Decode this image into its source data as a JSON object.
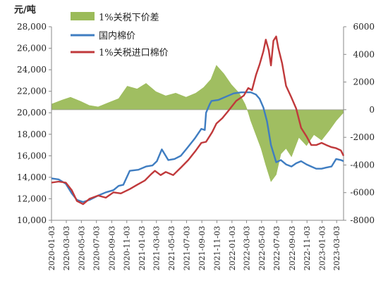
{
  "chart_data": {
    "type": "line",
    "unit_label": "元/吨",
    "left_axis": {
      "ylim": [
        10000,
        28000
      ],
      "ticks": [
        "10,000",
        "12,000",
        "14,000",
        "16,000",
        "18,000",
        "20,000",
        "22,000",
        "24,000",
        "26,000",
        "28,000"
      ],
      "tick_values": [
        10000,
        12000,
        14000,
        16000,
        18000,
        20000,
        22000,
        24000,
        26000,
        28000
      ]
    },
    "right_axis": {
      "ylim": [
        -8000,
        6000
      ],
      "ticks": [
        "-8000",
        "-6000",
        "-4000",
        "-2000",
        "0",
        "2000",
        "4000",
        "6000"
      ],
      "tick_values": [
        -8000,
        -6000,
        -4000,
        -2000,
        0,
        2000,
        4000,
        6000
      ]
    },
    "x_ticks": [
      "2020-01-03",
      "2020-03-03",
      "2020-05-03",
      "2020-07-03",
      "2020-09-03",
      "2020-11-03",
      "2021-01-03",
      "2021-03-03",
      "2021-05-03",
      "2021-07-03",
      "2021-09-03",
      "2021-11-03",
      "2022-01-03",
      "2022-03-03",
      "2022-05-03",
      "2022-07-03",
      "2022-09-03",
      "2022-11-03",
      "2023-01-03",
      "2023-03-03"
    ],
    "x_range": [
      "2020-01-03",
      "2023-03-31"
    ],
    "grid": false,
    "legend_position": "top-left",
    "series": [
      {
        "name": "1%关税下价差",
        "kind": "area",
        "axis": "right",
        "color": "#9bbb59",
        "dates": [
          "2020-01-03",
          "2020-02-15",
          "2020-03-20",
          "2020-04-30",
          "2020-06-05",
          "2020-07-10",
          "2020-08-20",
          "2020-10-01",
          "2020-11-05",
          "2020-12-15",
          "2021-01-20",
          "2021-03-01",
          "2021-04-10",
          "2021-05-20",
          "2021-07-01",
          "2021-08-10",
          "2021-09-10",
          "2021-10-10",
          "2021-11-01",
          "2021-12-01",
          "2022-01-01",
          "2022-02-01",
          "2022-02-25",
          "2022-03-10",
          "2022-03-20",
          "2022-04-10",
          "2022-05-01",
          "2022-05-20",
          "2022-06-10",
          "2022-07-01",
          "2022-07-20",
          "2022-08-10",
          "2022-09-01",
          "2022-10-01",
          "2022-11-01",
          "2022-12-01",
          "2023-01-01",
          "2023-02-01",
          "2023-03-01",
          "2023-03-31"
        ],
        "values": [
          400,
          700,
          900,
          600,
          300,
          200,
          500,
          800,
          1700,
          1500,
          1900,
          1300,
          1000,
          1200,
          900,
          1200,
          1600,
          2200,
          3200,
          2600,
          1800,
          1200,
          400,
          -200,
          -800,
          -1800,
          -2800,
          -4000,
          -5200,
          -4700,
          -3200,
          -2800,
          -3400,
          -2000,
          -2600,
          -1800,
          -2200,
          -1500,
          -800,
          -200
        ]
      },
      {
        "name": "国内棉价",
        "kind": "line",
        "axis": "left",
        "color": "#3f7dc1",
        "dates": [
          "2020-01-03",
          "2020-02-01",
          "2020-03-01",
          "2020-03-25",
          "2020-04-15",
          "2020-05-10",
          "2020-06-05",
          "2020-07-10",
          "2020-08-10",
          "2020-09-10",
          "2020-10-01",
          "2020-10-20",
          "2020-11-15",
          "2020-12-20",
          "2021-01-20",
          "2021-02-15",
          "2021-03-05",
          "2021-03-25",
          "2021-04-20",
          "2021-05-15",
          "2021-06-10",
          "2021-07-05",
          "2021-08-05",
          "2021-09-01",
          "2021-09-15",
          "2021-09-20",
          "2021-10-05",
          "2021-10-12",
          "2021-11-10",
          "2021-12-10",
          "2022-01-10",
          "2022-02-10",
          "2022-03-01",
          "2022-03-20",
          "2022-04-10",
          "2022-04-25",
          "2022-05-10",
          "2022-05-25",
          "2022-06-10",
          "2022-07-01",
          "2022-07-20",
          "2022-08-10",
          "2022-09-01",
          "2022-09-20",
          "2022-10-10",
          "2022-11-01",
          "2022-11-20",
          "2022-12-10",
          "2023-01-01",
          "2023-01-20",
          "2023-02-10",
          "2023-03-01",
          "2023-03-20",
          "2023-03-31"
        ],
        "values": [
          13900,
          13800,
          13400,
          12500,
          11900,
          11700,
          11900,
          12300,
          12600,
          12800,
          13200,
          13300,
          14600,
          14700,
          15000,
          15100,
          15500,
          16600,
          15600,
          15700,
          16000,
          16700,
          17600,
          18500,
          18400,
          20000,
          20800,
          21100,
          21200,
          21500,
          21800,
          21900,
          21900,
          21900,
          21700,
          21300,
          20500,
          19200,
          17000,
          15400,
          15600,
          15200,
          15000,
          15300,
          15500,
          15200,
          15000,
          14800,
          14800,
          14900,
          15000,
          15700,
          15600,
          15500
        ]
      },
      {
        "name": "1%关税进口棉价",
        "kind": "line",
        "axis": "left",
        "color": "#c0393b",
        "dates": [
          "2020-01-03",
          "2020-02-01",
          "2020-03-01",
          "2020-03-25",
          "2020-04-15",
          "2020-05-10",
          "2020-06-05",
          "2020-07-10",
          "2020-08-10",
          "2020-09-10",
          "2020-10-10",
          "2020-11-15",
          "2020-12-15",
          "2021-01-15",
          "2021-02-10",
          "2021-02-25",
          "2021-03-20",
          "2021-04-10",
          "2021-05-10",
          "2021-06-10",
          "2021-07-10",
          "2021-08-10",
          "2021-09-01",
          "2021-09-20",
          "2021-10-15",
          "2021-11-01",
          "2021-11-25",
          "2021-12-20",
          "2022-01-20",
          "2022-02-20",
          "2022-03-10",
          "2022-03-25",
          "2022-04-10",
          "2022-04-25",
          "2022-05-10",
          "2022-05-20",
          "2022-06-01",
          "2022-06-10",
          "2022-06-20",
          "2022-07-01",
          "2022-07-10",
          "2022-07-25",
          "2022-08-10",
          "2022-09-01",
          "2022-09-20",
          "2022-10-10",
          "2022-11-01",
          "2022-11-20",
          "2022-12-10",
          "2023-01-01",
          "2023-01-20",
          "2023-02-10",
          "2023-03-01",
          "2023-03-20",
          "2023-03-31"
        ],
        "values": [
          13500,
          13600,
          13500,
          12800,
          11800,
          11500,
          12000,
          12300,
          12100,
          12600,
          12500,
          12900,
          13300,
          13700,
          14300,
          14600,
          14200,
          14500,
          14200,
          14900,
          15600,
          16500,
          17200,
          17300,
          18200,
          19000,
          19500,
          20200,
          21100,
          21600,
          22300,
          22100,
          23500,
          24500,
          25700,
          26800,
          25800,
          24400,
          26700,
          27100,
          26000,
          24600,
          22500,
          21400,
          20400,
          18600,
          17800,
          17000,
          17000,
          17200,
          17000,
          16800,
          16700,
          16500,
          16000
        ]
      }
    ]
  }
}
